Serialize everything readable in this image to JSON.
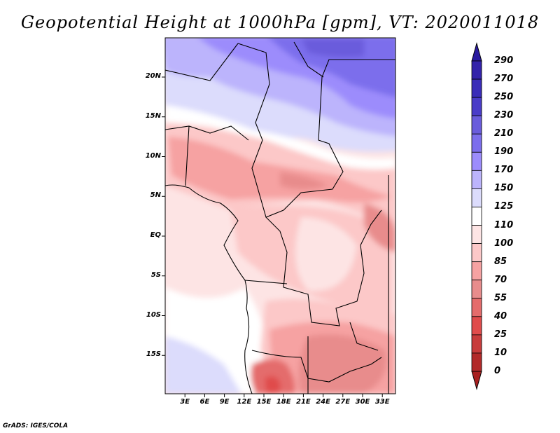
{
  "title": "Geopotential Height at 1000hPa [gpm], VT: 2020011018",
  "credit": "GrADS: IGES/COLA",
  "lat_ticks": [
    "20N",
    "15N",
    "10N",
    "5N",
    "EQ",
    "5S",
    "10S",
    "15S"
  ],
  "lon_ticks": [
    "3E",
    "6E",
    "9E",
    "12E",
    "15E",
    "18E",
    "21E",
    "24E",
    "27E",
    "30E",
    "33E"
  ],
  "colorbar": {
    "levels": [
      "290",
      "270",
      "250",
      "230",
      "210",
      "190",
      "170",
      "150",
      "125",
      "110",
      "100",
      "85",
      "70",
      "55",
      "40",
      "25",
      "10",
      "0"
    ],
    "colors": [
      "#2a1aa0",
      "#3322aa",
      "#3a2cb8",
      "#4a3cc8",
      "#6a5cdc",
      "#7c6eec",
      "#9c8cfc",
      "#bcb4fc",
      "#dcdcfc",
      "#ffffff",
      "#fde4e4",
      "#fcc8c8",
      "#f6a2a2",
      "#e88c8c",
      "#e46c6c",
      "#e04c4c",
      "#c83c3c",
      "#b22a2a",
      "#a82020"
    ]
  }
}
